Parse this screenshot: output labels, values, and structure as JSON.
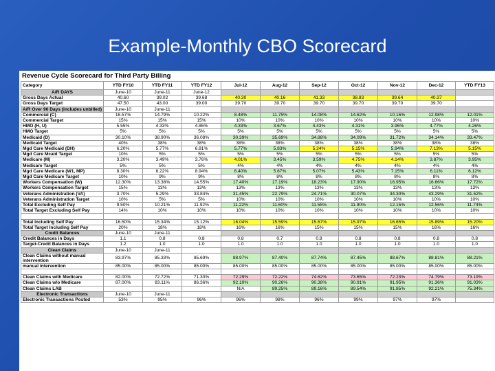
{
  "slide_title": "Example-Monthly CBO Scorecard",
  "sheet_title": "Revenue Cycle Scorecard for Third Party Billing",
  "columns": [
    "Category",
    "YTD FY10",
    "YTD FY11",
    "YTD FY12",
    "Jul-12",
    "Aug-12",
    "Sep-12",
    "Oct-12",
    "Nov-12",
    "Dec-12",
    "YTD FY13"
  ],
  "rows": [
    {
      "type": "sec",
      "cells": [
        "A/R DAYS",
        "June-10",
        "June-11",
        "June-12",
        "",
        "",
        "",
        "",
        "",
        "",
        ""
      ]
    },
    {
      "cells": [
        "Gross Days Actual",
        "40.60",
        "39.02",
        "39.68",
        "40.30",
        "40.16",
        "41.33",
        "38.83",
        "39.64",
        "40.37",
        ""
      ],
      "fill": [
        "",
        "",
        "",
        "",
        "y",
        "y",
        "y",
        "y",
        "y",
        "y",
        ""
      ]
    },
    {
      "cells": [
        "Gross Days Target",
        "47.50",
        "43.00",
        "39.00",
        "39.70",
        "39.70",
        "39.70",
        "39.70",
        "39.70",
        "39.70",
        ""
      ]
    },
    {
      "type": "sec",
      "cells": [
        "A/R Over 90 Days (includes unbilled)",
        "June-10",
        "June-11",
        "",
        "",
        "",
        "",
        "",
        "",
        "",
        ""
      ]
    },
    {
      "cells": [
        "Commercial (C)",
        "16.57%",
        "14.79%",
        "10.22%",
        "8.48%",
        "11.75%",
        "14.08%",
        "14.62%",
        "10.16%",
        "12.98%",
        "12.01%"
      ],
      "fill": [
        "",
        "",
        "",
        "",
        "g",
        "g",
        "g",
        "g",
        "g",
        "g",
        "g"
      ]
    },
    {
      "cells": [
        "Commercial Target",
        "15%",
        "15%",
        "15%",
        "10%",
        "10%",
        "10%",
        "10%",
        "10%",
        "10%",
        "10%"
      ]
    },
    {
      "cells": [
        "HMO (H, U)",
        "5.55%",
        "4.33%",
        "4.86%",
        "4.33%",
        "3.67%",
        "4.43%",
        "4.31%",
        "3.96%",
        "4.77%",
        "4.26%"
      ],
      "fill": [
        "",
        "",
        "",
        "",
        "g",
        "g",
        "g",
        "g",
        "g",
        "g",
        "g"
      ]
    },
    {
      "cells": [
        "HMO Target",
        "5%",
        "5%",
        "5%",
        "5%",
        "5%",
        "5%",
        "5%",
        "5%",
        "5%",
        "5%"
      ]
    },
    {
      "cells": [
        "Medicaid (D)",
        "30.10%",
        "38.90%",
        "36.08%",
        "30.39%",
        "35.69%",
        "34.88%",
        "34.09%",
        "31.72%",
        "34.14%",
        "33.47%"
      ],
      "fill": [
        "",
        "",
        "",
        "",
        "g",
        "g",
        "g",
        "g",
        "g",
        "g",
        "g"
      ]
    },
    {
      "cells": [
        "Medicaid Target",
        "40%",
        "38%",
        "38%",
        "38%",
        "38%",
        "38%",
        "38%",
        "38%",
        "38%",
        "38%"
      ]
    },
    {
      "cells": [
        "Mgd Care Medicaid (DH)",
        "6.20%",
        "5.77%",
        "6.81%",
        "5.77%",
        "5.83%",
        "5.24%",
        "5.15%",
        "5.94%",
        "7.13%",
        "5.15%"
      ],
      "fill": [
        "",
        "",
        "",
        "",
        "g",
        "g",
        "y",
        "y",
        "g",
        "y",
        "y"
      ]
    },
    {
      "cells": [
        "Mgd Care Mcaid Target",
        "10%",
        "5%",
        "5%",
        "5%",
        "5%",
        "5%",
        "5%",
        "5%",
        "5%",
        "5%"
      ]
    },
    {
      "cells": [
        "Medicare (M)",
        "3.20%",
        "3.49%",
        "3.76%",
        "4.01%",
        "3.45%",
        "3.59%",
        "4.75%",
        "4.14%",
        "3.87%",
        "3.95%"
      ],
      "fill": [
        "",
        "",
        "",
        "",
        "y",
        "g",
        "g",
        "y",
        "y",
        "g",
        "g"
      ]
    },
    {
      "cells": [
        "Medicare Target",
        "5%",
        "5%",
        "5%",
        "4%",
        "4%",
        "4%",
        "4%",
        "4%",
        "4%",
        "4%"
      ]
    },
    {
      "cells": [
        "Mgd Care Medicare (W1, MP)",
        "8.30%",
        "6.22%",
        "8.94%",
        "6.40%",
        "5.67%",
        "5.07%",
        "5.43%",
        "7.15%",
        "6.11%",
        "6.12%"
      ],
      "fill": [
        "",
        "",
        "",
        "",
        "g",
        "g",
        "g",
        "g",
        "g",
        "g",
        "g"
      ]
    },
    {
      "cells": [
        "Mgd Care Medicare Target",
        "10%",
        "9%",
        "9%",
        "8%",
        "8%",
        "8%",
        "8%",
        "8%",
        "8%",
        "8%"
      ]
    },
    {
      "cells": [
        "Workers Compensation (W)",
        "12.30%",
        "13.38%",
        "14.55%",
        "17.40%",
        "17.19%",
        "18.23%",
        "17.90%",
        "16.95%",
        "16.66%",
        "17.72%"
      ],
      "fill": [
        "",
        "",
        "",
        "",
        "g",
        "g",
        "g",
        "g",
        "g",
        "g",
        "g"
      ]
    },
    {
      "cells": [
        "Workers Compensation Target",
        "15%",
        "13%",
        "13%",
        "13%",
        "13%",
        "13%",
        "13%",
        "13%",
        "13%",
        "13%"
      ]
    },
    {
      "cells": [
        "Veterans Administration (VA)",
        "3.70%",
        "5.29%",
        "33.84%",
        "31.45%",
        "22.79%",
        "24.71%",
        "30.07%",
        "34.30%",
        "43.29%",
        "31.52%"
      ],
      "fill": [
        "",
        "",
        "",
        "",
        "g",
        "g",
        "g",
        "g",
        "g",
        "g",
        "g"
      ]
    },
    {
      "cells": [
        "Veterans Administration Target",
        "10%",
        "5%",
        "5%",
        "10%",
        "10%",
        "10%",
        "10%",
        "10%",
        "10%",
        "10%"
      ]
    },
    {
      "cells": [
        "Total Excluding Self Pay",
        "9.50%",
        "10.21%",
        "11.92%",
        "11.22%",
        "11.60%",
        "11.55%",
        "11.90%",
        "12.15%",
        "12.56%",
        "11.74%"
      ],
      "fill": [
        "",
        "",
        "",
        "",
        "g",
        "g",
        "g",
        "g",
        "g",
        "g",
        "g"
      ]
    },
    {
      "cells": [
        "Total Target Excluding Self Pay",
        "14%",
        "10%",
        "10%",
        "10%",
        "10%",
        "10%",
        "10%",
        "10%",
        "10%",
        "10%"
      ]
    },
    {
      "type": "blank",
      "cells": [
        "",
        "",
        "",
        "",
        "",
        "",
        "",
        "",
        "",
        "",
        ""
      ]
    },
    {
      "cells": [
        "Total Including Self Pay",
        "16.50%",
        "15.34%",
        "15.12%",
        "16.04%",
        "15.59%",
        "15.67%",
        "15.97%",
        "16.65%",
        "15.89%",
        "15.20%"
      ],
      "fill": [
        "",
        "",
        "",
        "",
        "y",
        "y",
        "y",
        "y",
        "y",
        "y",
        "y"
      ]
    },
    {
      "cells": [
        "Total Target Including Self Pay",
        "20%",
        "18%",
        "18%",
        "16%",
        "16%",
        "15%",
        "15%",
        "15%",
        "16%",
        "16%"
      ]
    },
    {
      "type": "sec",
      "cells": [
        "Credit Balances",
        "June-10",
        "June-11",
        "",
        "",
        "",
        "",
        "",
        "",
        "",
        ""
      ]
    },
    {
      "cells": [
        "Credit Balances in Days",
        "1.1",
        "0.8",
        "0.8",
        "0.8",
        "0.7",
        "0.8",
        "0.8",
        "0.8",
        "0.8",
        "0.8"
      ]
    },
    {
      "cells": [
        "Target-Credit Balances in Days",
        "1.2",
        "1.0",
        "1.0",
        "1.0",
        "1.0",
        "1.0",
        "1.0",
        "1.0",
        "1.0",
        "1.0"
      ]
    },
    {
      "type": "sec",
      "cells": [
        "Clean Claims",
        "June-10",
        "June-11",
        "",
        "",
        "",
        "",
        "",
        "",
        "",
        ""
      ]
    },
    {
      "type": "tall",
      "cells": [
        "Clean Claims without manual intervention",
        "83.97%",
        "85.33%",
        "85.69%",
        "88.97%",
        "87.40%",
        "87.74%",
        "87.45%",
        "88.67%",
        "88.81%",
        "88.21%"
      ],
      "fill": [
        "",
        "",
        "",
        "",
        "g",
        "g",
        "g",
        "g",
        "g",
        "g",
        "g"
      ]
    },
    {
      "cells": [
        "manual intervention",
        "85.00%",
        "85.00%",
        "85.00%",
        "85.00%",
        "85.00%",
        "85.00%",
        "85.00%",
        "85.00%",
        "85.00%",
        "85.00%"
      ]
    },
    {
      "type": "blank",
      "cells": [
        "",
        "",
        "",
        "",
        "",
        "",
        "",
        "",
        "",
        "",
        ""
      ]
    },
    {
      "cells": [
        "Clean Claims with Medicare",
        "82.00%",
        "72.72%",
        "71.30%",
        "72.29%",
        "72.22%",
        "74.62%",
        "73.65%",
        "72.23%",
        "74.79%",
        "73.19%"
      ],
      "fill": [
        "",
        "",
        "",
        "",
        "p",
        "p",
        "p",
        "p",
        "p",
        "p",
        "p"
      ]
    },
    {
      "cells": [
        "Clean Claims w/o Medicare",
        "87.00%",
        "83.11%",
        "86.36%",
        "92.10%",
        "90.26%",
        "90.38%",
        "90.91%",
        "91.95%",
        "91.36%",
        "91.03%"
      ],
      "fill": [
        "",
        "",
        "",
        "",
        "g",
        "g",
        "g",
        "g",
        "g",
        "g",
        "g"
      ]
    },
    {
      "cells": [
        "Clean Claims LAB",
        "",
        "",
        "",
        "N/A",
        "89.25%",
        "89.16%",
        "89.54%",
        "91.85%",
        "92.21%",
        "75.34%"
      ],
      "fill": [
        "",
        "",
        "",
        "",
        "",
        "g",
        "g",
        "g",
        "g",
        "g",
        "g"
      ]
    },
    {
      "type": "sec",
      "cells": [
        "Electronic Transactions",
        "June-10",
        "June-11",
        "",
        "",
        "",
        "",
        "",
        "",
        "",
        ""
      ]
    },
    {
      "cells": [
        "Electronic Transactions Posted",
        "53%",
        "95%",
        "96%",
        "96%",
        "98%",
        "96%",
        "99%",
        "97%",
        "97%",
        ""
      ]
    }
  ]
}
